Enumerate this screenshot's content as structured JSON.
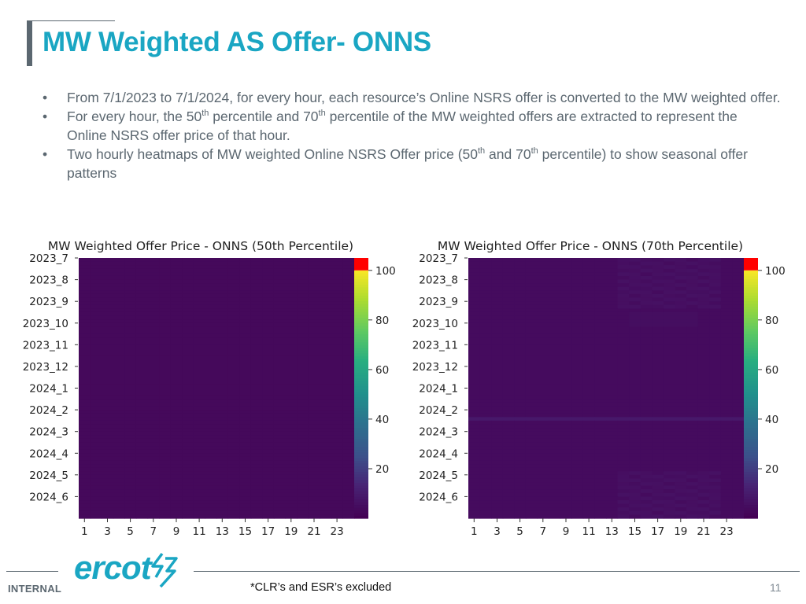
{
  "header": {
    "title": "MW Weighted AS Offer- ONNS"
  },
  "bullets": [
    {
      "bullet": "•",
      "text": "From 7/1/2023 to 7/1/2024, for every hour, each resource’s Online NSRS offer is converted to the MW weighted offer."
    },
    {
      "bullet": "•",
      "text_a": "For every hour, the 50",
      "sup_a": "th",
      "text_b": " percentile and 70",
      "sup_b": "th",
      "text_c": " percentile of the MW weighted offers are extracted to represent the Online NSRS offer price of that hour."
    },
    {
      "bullet": "•",
      "text_a": "Two hourly heatmaps of MW weighted Online NSRS Offer price (50",
      "sup_a": "th",
      "text_b": " and 70",
      "sup_b": "th",
      "text_c": " percentile) to show seasonal offer patterns"
    }
  ],
  "chart_data": [
    {
      "type": "heatmap",
      "title": "MW Weighted Offer Price - ONNS (50th Percentile)",
      "y_categories": [
        "2023_7",
        "2023_8",
        "2023_9",
        "2023_10",
        "2023_11",
        "2023_12",
        "2024_1",
        "2024_2",
        "2024_3",
        "2024_4",
        "2024_5",
        "2024_6"
      ],
      "x_ticks": [
        "1",
        "3",
        "5",
        "7",
        "9",
        "11",
        "13",
        "15",
        "17",
        "19",
        "21",
        "23"
      ],
      "x_range": [
        1,
        24
      ],
      "colorbar": {
        "ticks": [
          20,
          40,
          60,
          80,
          100
        ],
        "range": [
          0,
          105
        ],
        "top_color": "#ff0000"
      },
      "colormap": "viridis",
      "base_value": 3,
      "notes": [
        "Values uniformly near the minimum of the scale across all months and hours"
      ]
    },
    {
      "type": "heatmap",
      "title": "MW Weighted Offer Price - ONNS (70th Percentile)",
      "y_categories": [
        "2023_7",
        "2023_8",
        "2023_9",
        "2023_10",
        "2023_11",
        "2023_12",
        "2024_1",
        "2024_2",
        "2024_3",
        "2024_4",
        "2024_5",
        "2024_6"
      ],
      "x_ticks": [
        "1",
        "3",
        "5",
        "7",
        "9",
        "11",
        "13",
        "15",
        "17",
        "19",
        "21",
        "23"
      ],
      "x_range": [
        1,
        24
      ],
      "colorbar": {
        "ticks": [
          20,
          40,
          60,
          80,
          100
        ],
        "range": [
          0,
          105
        ],
        "top_color": "#ff0000"
      },
      "colormap": "viridis",
      "base_value": 4,
      "notes": [
        "Mostly near the minimum, with slightly elevated values in afternoon/evening hours (about 16–22) during summer months and one brief higher band in early February 2024"
      ]
    }
  ],
  "footer": {
    "internal_label": "INTERNAL",
    "footnote": "*CLR’s and ESR’s excluded",
    "page_number": "11",
    "logo_text": "ercot"
  },
  "colors": {
    "title": "#1aa6c3",
    "body_text": "#5b6770",
    "heat_base": "#450a55",
    "logo": "#1aa6c3"
  }
}
